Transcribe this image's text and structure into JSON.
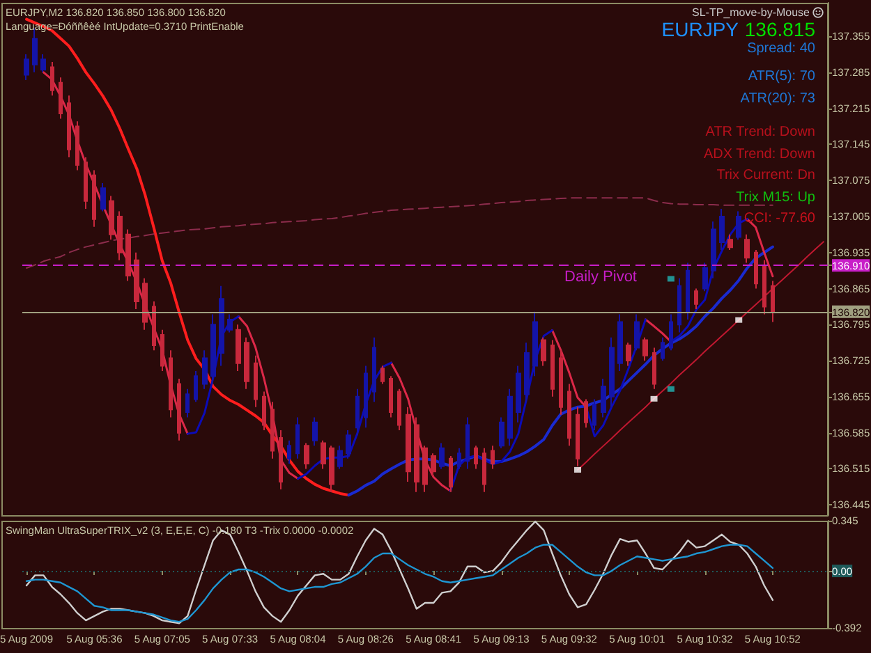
{
  "chart_data": [
    {
      "type": "candlestick",
      "title": "EURJPY,M2 136.820 136.850 136.800 136.820",
      "subtitle": "Language=Ðóññêèé IntUpdate=0.3710 PrintEnable",
      "annotations": [
        "SL-TP_move-by-Mouse",
        "EURJPY",
        "136.815",
        "Spread: 40",
        "ATR(5): 70",
        "ATR(20): 73",
        "ATR Trend: Down",
        "ADX Trend: Down",
        "Trix Current: Dn",
        "Trix M15: Up",
        "CCI: -77.60"
      ],
      "categories": [
        null,
        null,
        null,
        null,
        null,
        null,
        null,
        null,
        null,
        null,
        null,
        null,
        null,
        null,
        null,
        null,
        null,
        null,
        null,
        null,
        null,
        null,
        null,
        null,
        null,
        null,
        null,
        null,
        null,
        null,
        null,
        null,
        null,
        null,
        null,
        null,
        null,
        null,
        null,
        null,
        null,
        null,
        null,
        null,
        null,
        null,
        null,
        null,
        null,
        null,
        null,
        null,
        null,
        null,
        null,
        null,
        null,
        null,
        null,
        null,
        null,
        null,
        null,
        null,
        null,
        null,
        null,
        null,
        null,
        null,
        null,
        null,
        null,
        null,
        null,
        null,
        null,
        null,
        null,
        null,
        null,
        null,
        null,
        null,
        null,
        null,
        null,
        null,
        null,
        null,
        null,
        null,
        null,
        null,
        null
      ],
      "ohlc": [
        [
          137.28,
          137.32,
          137.27,
          137.31
        ],
        [
          137.3,
          137.37,
          137.285,
          137.35
        ],
        [
          137.29,
          137.32,
          137.285,
          137.31
        ],
        [
          137.295,
          137.305,
          137.24,
          137.25
        ],
        [
          137.265,
          137.275,
          137.195,
          137.205
        ],
        [
          137.225,
          137.24,
          137.12,
          137.135
        ],
        [
          137.18,
          137.19,
          137.095,
          137.105
        ],
        [
          137.11,
          137.12,
          137.02,
          137.035
        ],
        [
          137.085,
          137.095,
          136.985,
          137.0
        ],
        [
          137.02,
          137.07,
          137.015,
          137.06
        ],
        [
          137.035,
          137.045,
          136.96,
          136.97
        ],
        [
          137.005,
          137.015,
          136.92,
          136.935
        ],
        [
          136.97,
          136.98,
          136.88,
          136.89
        ],
        [
          136.92,
          136.935,
          136.825,
          136.84
        ],
        [
          136.875,
          136.885,
          136.785,
          136.8
        ],
        [
          136.83,
          136.84,
          136.745,
          136.755
        ],
        [
          136.775,
          136.785,
          136.705,
          136.715
        ],
        [
          136.73,
          136.745,
          136.615,
          136.63
        ],
        [
          136.68,
          136.69,
          136.57,
          136.585
        ],
        [
          136.625,
          136.67,
          136.615,
          136.66
        ],
        [
          136.65,
          136.705,
          136.645,
          136.695
        ],
        [
          136.68,
          136.745,
          136.67,
          136.73
        ],
        [
          136.695,
          136.815,
          136.68,
          136.795
        ],
        [
          136.74,
          136.87,
          136.715,
          136.845
        ],
        [
          136.785,
          136.815,
          136.78,
          136.805
        ],
        [
          136.785,
          136.795,
          136.705,
          136.72
        ],
        [
          136.76,
          136.77,
          136.67,
          136.685
        ],
        [
          136.72,
          136.735,
          136.635,
          136.65
        ],
        [
          136.655,
          136.665,
          136.59,
          136.6
        ],
        [
          136.63,
          136.645,
          136.535,
          136.55
        ],
        [
          136.575,
          136.59,
          136.475,
          136.49
        ],
        [
          136.535,
          136.57,
          136.525,
          136.56
        ],
        [
          136.545,
          136.615,
          136.535,
          136.6
        ],
        [
          136.56,
          136.565,
          136.515,
          136.525
        ],
        [
          136.57,
          136.615,
          136.56,
          136.605
        ],
        [
          136.565,
          136.57,
          136.515,
          136.525
        ],
        [
          136.555,
          136.56,
          136.47,
          136.485
        ],
        [
          136.52,
          136.56,
          136.515,
          136.55
        ],
        [
          136.545,
          136.59,
          136.535,
          136.58
        ],
        [
          136.595,
          136.67,
          136.58,
          136.655
        ],
        [
          136.615,
          136.715,
          136.595,
          136.7
        ],
        [
          136.665,
          136.77,
          136.645,
          136.75
        ],
        [
          136.71,
          136.715,
          136.68,
          136.685
        ],
        [
          136.69,
          136.695,
          136.615,
          136.625
        ],
        [
          136.665,
          136.67,
          136.59,
          136.6
        ],
        [
          136.62,
          136.635,
          136.49,
          136.51
        ],
        [
          136.6,
          136.615,
          136.47,
          136.49
        ],
        [
          136.555,
          136.56,
          136.47,
          136.485
        ],
        [
          136.54,
          136.545,
          136.5,
          136.51
        ],
        [
          136.52,
          136.565,
          136.515,
          136.555
        ],
        [
          136.535,
          136.54,
          136.47,
          136.48
        ],
        [
          136.52,
          136.555,
          136.515,
          136.545
        ],
        [
          136.53,
          136.615,
          136.515,
          136.6
        ],
        [
          136.555,
          136.56,
          136.515,
          136.525
        ],
        [
          136.545,
          136.555,
          136.47,
          136.485
        ],
        [
          136.55,
          136.56,
          136.515,
          136.525
        ],
        [
          136.56,
          136.615,
          136.555,
          136.605
        ],
        [
          136.575,
          136.67,
          136.56,
          136.655
        ],
        [
          136.625,
          136.715,
          136.605,
          136.7
        ],
        [
          136.66,
          136.76,
          136.645,
          136.74
        ],
        [
          136.715,
          136.82,
          136.695,
          136.8
        ],
        [
          136.765,
          136.77,
          136.715,
          136.725
        ],
        [
          136.755,
          136.765,
          136.655,
          136.67
        ],
        [
          136.73,
          136.745,
          136.62,
          136.635
        ],
        [
          136.665,
          136.68,
          136.56,
          136.575
        ],
        [
          136.62,
          136.635,
          136.52,
          136.535
        ],
        [
          136.645,
          136.65,
          136.595,
          136.605
        ],
        [
          136.6,
          136.65,
          136.59,
          136.64
        ],
        [
          136.625,
          136.69,
          136.615,
          136.675
        ],
        [
          136.655,
          136.77,
          136.635,
          136.75
        ],
        [
          136.72,
          136.815,
          136.705,
          136.8
        ],
        [
          136.755,
          136.76,
          136.715,
          136.725
        ],
        [
          136.75,
          136.815,
          136.745,
          136.8
        ],
        [
          136.765,
          136.77,
          136.725,
          136.735
        ],
        [
          136.74,
          136.75,
          136.67,
          136.68
        ],
        [
          136.73,
          136.77,
          136.725,
          136.76
        ],
        [
          136.75,
          136.815,
          136.745,
          136.8
        ],
        [
          136.795,
          136.885,
          136.78,
          136.87
        ],
        [
          136.82,
          136.915,
          136.805,
          136.9
        ],
        [
          136.86,
          136.865,
          136.825,
          136.835
        ],
        [
          136.865,
          136.915,
          136.86,
          136.905
        ],
        [
          136.9,
          136.995,
          136.885,
          136.98
        ],
        [
          136.955,
          137.02,
          136.94,
          137.005
        ],
        [
          136.96,
          136.97,
          136.94,
          136.945
        ],
        [
          136.965,
          137.015,
          136.96,
          137.005
        ],
        [
          136.96,
          136.97,
          136.915,
          136.925
        ],
        [
          136.935,
          136.94,
          136.865,
          136.875
        ],
        [
          136.91,
          136.92,
          136.815,
          136.83
        ],
        [
          136.87,
          136.88,
          136.8,
          136.82
        ],
        null,
        null,
        null,
        null,
        null,
        null
      ],
      "colors": [
        "#1414a8",
        "#1414a8",
        "#1414a8",
        "#c8283c",
        "#c8283c",
        "#c8283c",
        "#c8283c",
        "#c8283c",
        "#c8283c",
        "#1414a8",
        "#c8283c",
        "#c8283c",
        "#c8283c",
        "#c8283c",
        "#c8283c",
        "#c8283c",
        "#c8283c",
        "#c8283c",
        "#c8283c",
        "#1414a8",
        "#1414a8",
        "#1414a8",
        "#1414a8",
        "#1414a8",
        "#1414a8",
        "#c8283c",
        "#c8283c",
        "#c8283c",
        "#c8283c",
        "#c8283c",
        "#c8283c",
        "#1414a8",
        "#1414a8",
        "#c8283c",
        "#1414a8",
        "#c8283c",
        "#c8283c",
        "#1414a8",
        "#1414a8",
        "#1414a8",
        "#1414a8",
        "#1414a8",
        "#c8283c",
        "#c8283c",
        "#c8283c",
        "#c8283c",
        "#c8283c",
        "#c8283c",
        "#c8283c",
        "#1414a8",
        "#c8283c",
        "#1414a8",
        "#1414a8",
        "#c8283c",
        "#c8283c",
        "#c8283c",
        "#1414a8",
        "#1414a8",
        "#1414a8",
        "#1414a8",
        "#1414a8",
        "#c8283c",
        "#c8283c",
        "#c8283c",
        "#c8283c",
        "#c8283c",
        "#c8283c",
        "#1414a8",
        "#1414a8",
        "#1414a8",
        "#1414a8",
        "#c8283c",
        "#1414a8",
        "#c8283c",
        "#c8283c",
        "#1414a8",
        "#1414a8",
        "#1414a8",
        "#1414a8",
        "#c8283c",
        "#1414a8",
        "#1414a8",
        "#1414a8",
        "#c8283c",
        "#1414a8",
        "#c8283c",
        "#c8283c",
        "#c8283c",
        "#c8283c",
        null,
        null,
        null,
        null,
        null,
        null
      ],
      "ylim": [
        136.425,
        137.42
      ],
      "yticks": [
        137.355,
        137.285,
        137.215,
        137.145,
        137.075,
        137.005,
        136.935,
        136.865,
        136.795,
        136.725,
        136.655,
        136.585,
        136.515,
        136.445,
        {
          "value": 136.91,
          "label": "136.910"
        },
        {
          "value": 136.82,
          "label": "136.820"
        }
      ],
      "series": [
        {
          "type": "line",
          "color": "#ff1e1e",
          "values": [
            137.388,
            137.381,
            137.374,
            137.366,
            137.351,
            137.336,
            137.312,
            137.285,
            137.263,
            137.239,
            137.211,
            137.176,
            137.136,
            137.098,
            137.046,
            136.984,
            136.919,
            136.876,
            136.819,
            136.765,
            136.729,
            136.708,
            136.675,
            136.659,
            136.648,
            136.64,
            136.629,
            136.618,
            136.605,
            136.58,
            136.559,
            136.532,
            136.51,
            136.496,
            136.485,
            136.477,
            136.472,
            136.467,
            136.464,
            null,
            null,
            null,
            null,
            null,
            null,
            null,
            null,
            null,
            null,
            null,
            null,
            null,
            null,
            null,
            null,
            null,
            null,
            null,
            null,
            null,
            null,
            null,
            null,
            null,
            null,
            null,
            null,
            null,
            null,
            null,
            null,
            null,
            null,
            null,
            null,
            null,
            null,
            null,
            null,
            null,
            null,
            null,
            null,
            null,
            null,
            null,
            null,
            null,
            null,
            null,
            null,
            null,
            null,
            null,
            null
          ]
        },
        {
          "type": "line",
          "color": "#1a2ad0",
          "values": [
            null,
            null,
            null,
            null,
            null,
            null,
            null,
            null,
            null,
            null,
            null,
            null,
            null,
            null,
            null,
            null,
            null,
            null,
            null,
            null,
            null,
            null,
            null,
            null,
            null,
            null,
            null,
            null,
            null,
            null,
            null,
            null,
            null,
            null,
            null,
            null,
            null,
            null,
            136.464,
            136.472,
            136.483,
            136.491,
            136.505,
            136.515,
            136.524,
            136.532,
            136.534,
            136.534,
            136.532,
            136.526,
            136.521,
            136.529,
            136.534,
            136.54,
            136.534,
            136.529,
            136.529,
            136.534,
            136.54,
            136.548,
            136.559,
            136.572,
            136.599,
            136.621,
            136.629,
            136.635,
            136.637,
            136.643,
            136.648,
            136.659,
            136.67,
            136.686,
            136.702,
            136.718,
            136.735,
            136.748,
            136.759,
            136.767,
            136.778,
            136.792,
            136.811,
            136.827,
            136.846,
            136.862,
            136.881,
            136.905,
            136.924,
            136.935,
            136.946,
            null,
            null,
            null,
            null,
            null,
            null
          ]
        },
        {
          "type": "line",
          "color": "#dc2848",
          "values": [
            null,
            null,
            137.285,
            137.271,
            137.239,
            137.203,
            137.152,
            137.106,
            137.068,
            137.027,
            136.989,
            136.951,
            136.916,
            136.878,
            136.832,
            136.789,
            136.746,
            136.678,
            136.621,
            136.583,
            null,
            null,
            null,
            null,
            null,
            136.811,
            136.792,
            136.751,
            136.691,
            136.621,
            136.532,
            136.507,
            136.496,
            null,
            null,
            null,
            null,
            null,
            null,
            null,
            null,
            null,
            null,
            136.721,
            136.691,
            136.651,
            136.589,
            136.532,
            136.499,
            136.483,
            136.472,
            null,
            null,
            null,
            null,
            null,
            null,
            null,
            null,
            null,
            null,
            null,
            136.784,
            136.746,
            136.702,
            136.653,
            136.635,
            null,
            null,
            null,
            null,
            null,
            null,
            136.805,
            136.792,
            136.778,
            136.762,
            null,
            null,
            null,
            null,
            null,
            null,
            null,
            null,
            137.0,
            136.984,
            136.935,
            136.889,
            null,
            null,
            null,
            null,
            null,
            null
          ]
        },
        {
          "type": "line",
          "color": "#0c0cb8",
          "values": [
            null,
            null,
            null,
            null,
            null,
            null,
            null,
            null,
            null,
            null,
            null,
            null,
            null,
            null,
            null,
            null,
            null,
            null,
            null,
            136.583,
            136.586,
            136.624,
            136.691,
            136.773,
            136.8,
            136.811,
            null,
            null,
            null,
            null,
            null,
            null,
            136.496,
            136.505,
            136.521,
            136.534,
            136.537,
            136.537,
            136.54,
            136.583,
            136.64,
            136.686,
            136.713,
            136.721,
            null,
            null,
            null,
            null,
            null,
            null,
            136.472,
            136.521,
            136.537,
            136.54,
            136.532,
            136.524,
            136.529,
            136.548,
            136.583,
            136.653,
            136.727,
            136.773,
            136.784,
            null,
            null,
            null,
            136.635,
            136.578,
            136.599,
            136.635,
            136.667,
            136.71,
            136.756,
            136.805,
            null,
            null,
            136.762,
            136.773,
            136.792,
            136.824,
            136.843,
            136.903,
            136.938,
            136.97,
            136.992,
            137.0,
            null,
            null,
            null,
            null,
            null,
            null,
            null,
            null,
            null
          ]
        },
        {
          "type": "line",
          "color": "#8c2c4c",
          "line_style": "dashed",
          "values": [
            136.905,
            136.911,
            136.918,
            136.923,
            136.927,
            136.935,
            136.941,
            136.946,
            136.95,
            136.954,
            136.958,
            136.961,
            136.963,
            136.966,
            136.968,
            136.971,
            136.973,
            136.975,
            136.977,
            136.979,
            136.98,
            136.981,
            136.983,
            136.985,
            136.986,
            136.987,
            136.989,
            136.99,
            136.991,
            136.993,
            136.994,
            136.995,
            136.996,
            136.997,
            136.999,
            137.0,
            137.001,
            137.003,
            137.006,
            137.008,
            137.011,
            137.013,
            137.015,
            137.017,
            137.018,
            137.019,
            137.02,
            137.021,
            137.022,
            137.023,
            137.024,
            137.025,
            137.026,
            137.027,
            137.029,
            137.03,
            137.032,
            137.033,
            137.034,
            137.036,
            137.037,
            137.038,
            137.039,
            137.04,
            137.041,
            137.041,
            137.041,
            137.041,
            137.041,
            137.041,
            137.041,
            137.041,
            137.041,
            137.041,
            137.036,
            137.032,
            137.03,
            137.029,
            137.029,
            137.028,
            137.028,
            137.028,
            137.027,
            137.027,
            137.027,
            137.027,
            137.027,
            137.027,
            137.027,
            null,
            null,
            null,
            null,
            null,
            null
          ]
        },
        {
          "type": "line",
          "color": "#c01830",
          "values": [
            null,
            null,
            null,
            null,
            null,
            null,
            null,
            null,
            null,
            null,
            null,
            null,
            null,
            null,
            null,
            null,
            null,
            null,
            null,
            null,
            null,
            null,
            null,
            null,
            null,
            null,
            null,
            null,
            null,
            null,
            null,
            null,
            null,
            null,
            null,
            null,
            null,
            null,
            null,
            null,
            null,
            null,
            null,
            null,
            null,
            null,
            null,
            null,
            null,
            null,
            null,
            null,
            null,
            null,
            null,
            null,
            null,
            null,
            null,
            null,
            null,
            null,
            null,
            null,
            null,
            136.513,
            136.528,
            136.544,
            136.559,
            136.574,
            136.59,
            136.605,
            136.62,
            136.635,
            136.651,
            136.666,
            136.681,
            136.697,
            136.712,
            136.727,
            136.743,
            136.758,
            136.773,
            136.788,
            136.804,
            136.819,
            136.834,
            136.849,
            136.865,
            136.88,
            136.895,
            136.91,
            136.926,
            136.941,
            136.956
          ]
        },
        {
          "type": "scatter",
          "color": "#ffffff",
          "marker": "square",
          "values": [
            null,
            null,
            null,
            null,
            null,
            null,
            null,
            null,
            null,
            null,
            null,
            null,
            null,
            null,
            null,
            null,
            null,
            null,
            null,
            null,
            null,
            null,
            null,
            null,
            null,
            null,
            null,
            null,
            null,
            null,
            null,
            null,
            null,
            null,
            null,
            null,
            null,
            null,
            null,
            null,
            null,
            null,
            null,
            null,
            null,
            null,
            null,
            null,
            null,
            null,
            null,
            null,
            null,
            null,
            null,
            null,
            null,
            null,
            null,
            null,
            null,
            null,
            null,
            null,
            null,
            136.513,
            null,
            null,
            null,
            null,
            null,
            null,
            null,
            null,
            136.651,
            null,
            null,
            null,
            null,
            null,
            null,
            null,
            null,
            null,
            136.804,
            null,
            null,
            null,
            null,
            null,
            null,
            null,
            null,
            null,
            null
          ]
        },
        {
          "type": "scatter",
          "color": "#20b4b4",
          "marker": "square",
          "values": [
            null,
            null,
            null,
            null,
            null,
            null,
            null,
            null,
            null,
            null,
            null,
            null,
            null,
            null,
            null,
            null,
            null,
            null,
            null,
            null,
            null,
            null,
            null,
            null,
            null,
            null,
            null,
            null,
            null,
            null,
            null,
            null,
            null,
            null,
            null,
            null,
            null,
            null,
            null,
            null,
            null,
            null,
            null,
            null,
            null,
            null,
            null,
            null,
            null,
            null,
            null,
            null,
            null,
            null,
            null,
            null,
            null,
            null,
            null,
            null,
            null,
            null,
            null,
            null,
            null,
            null,
            null,
            null,
            null,
            null,
            null,
            null,
            null,
            null,
            null,
            null,
            136.884,
            null,
            null,
            null,
            null,
            null,
            null,
            null,
            null,
            null,
            null,
            null,
            null,
            null,
            null,
            null,
            null,
            null,
            null
          ]
        },
        {
          "type": "scatter",
          "color": "#20b4b4",
          "marker": "square",
          "values": [
            null,
            null,
            null,
            null,
            null,
            null,
            null,
            null,
            null,
            null,
            null,
            null,
            null,
            null,
            null,
            null,
            null,
            null,
            null,
            null,
            null,
            null,
            null,
            null,
            null,
            null,
            null,
            null,
            null,
            null,
            null,
            null,
            null,
            null,
            null,
            null,
            null,
            null,
            null,
            null,
            null,
            null,
            null,
            null,
            null,
            null,
            null,
            null,
            null,
            null,
            null,
            null,
            null,
            null,
            null,
            null,
            null,
            null,
            null,
            null,
            null,
            null,
            null,
            null,
            null,
            null,
            null,
            null,
            null,
            null,
            null,
            null,
            null,
            null,
            null,
            null,
            136.67,
            null,
            null,
            null,
            null,
            null,
            null,
            null,
            null,
            null,
            null,
            null,
            null,
            null,
            null,
            null,
            null,
            null,
            null
          ]
        }
      ],
      "ref_lines": [
        {
          "axis": "y",
          "value": 136.91,
          "label": "Daily Pivot",
          "color": "#c81ec8",
          "line_style": "dashed"
        },
        {
          "axis": "y",
          "value": 136.82,
          "color": "#a0a080",
          "line_style": "solid"
        }
      ]
    },
    {
      "type": "line",
      "title": "SwingMan UltraSuperTRIX_v2 (3, E,E,E, C) -0.180 T3 -Trix 0.0000 -0.0002",
      "categories": [
        "5 Aug 2009",
        null,
        null,
        null,
        null,
        null,
        null,
        null,
        "5 Aug 05:36",
        null,
        null,
        null,
        null,
        null,
        null,
        null,
        "5 Aug 07:05",
        null,
        null,
        null,
        null,
        null,
        null,
        null,
        "5 Aug 07:33",
        null,
        null,
        null,
        null,
        null,
        null,
        null,
        "5 Aug 08:04",
        null,
        null,
        null,
        null,
        null,
        null,
        null,
        "5 Aug 08:26",
        null,
        null,
        null,
        null,
        null,
        null,
        null,
        "5 Aug 08:41",
        null,
        null,
        null,
        null,
        null,
        null,
        null,
        "5 Aug 09:13",
        null,
        null,
        null,
        null,
        null,
        null,
        null,
        "5 Aug 09:32",
        null,
        null,
        null,
        null,
        null,
        null,
        null,
        "5 Aug 10:01",
        null,
        null,
        null,
        null,
        null,
        null,
        null,
        "5 Aug 10:32",
        null,
        null,
        null,
        null,
        null,
        null,
        null,
        "5 Aug 10:52",
        null,
        null,
        null,
        null,
        null,
        null
      ],
      "ylim": [
        -0.392,
        0.345
      ],
      "yticks": [
        0.345,
        {
          "value": 0,
          "label": "0.00"
        },
        -0.392
      ],
      "series": [
        {
          "color": "#cfcfcf",
          "values": [
            -0.1,
            -0.03,
            -0.03,
            -0.11,
            -0.16,
            -0.22,
            -0.29,
            -0.34,
            -0.31,
            -0.28,
            -0.26,
            -0.26,
            -0.27,
            -0.28,
            -0.29,
            -0.31,
            -0.34,
            -0.35,
            -0.36,
            -0.31,
            -0.13,
            0.04,
            0.21,
            0.28,
            0.25,
            0.13,
            0,
            -0.14,
            -0.25,
            -0.31,
            -0.35,
            -0.27,
            -0.17,
            -0.1,
            -0.03,
            -0.02,
            -0.06,
            -0.06,
            -0.02,
            0.1,
            0.21,
            0.29,
            0.25,
            0.14,
            0.01,
            -0.12,
            -0.26,
            -0.22,
            -0.22,
            -0.15,
            -0.14,
            -0.08,
            0.03,
            0.03,
            -0.01,
            0,
            0.06,
            0.14,
            0.21,
            0.28,
            0.34,
            0.28,
            0.12,
            -0.03,
            -0.16,
            -0.25,
            -0.23,
            -0.13,
            -0.02,
            0.11,
            0.22,
            0.2,
            0.21,
            0.12,
            0.02,
            0.01,
            0.07,
            0.13,
            0.21,
            0.16,
            0.17,
            0.21,
            0.25,
            0.2,
            0.18,
            0.12,
            0.03,
            -0.1,
            -0.2,
            null,
            null,
            null,
            null,
            null,
            null
          ]
        },
        {
          "color": "#1e96d2",
          "values": [
            -0.07,
            -0.06,
            -0.06,
            -0.07,
            -0.08,
            -0.11,
            -0.14,
            -0.19,
            -0.24,
            -0.25,
            -0.27,
            -0.27,
            -0.27,
            -0.28,
            -0.29,
            -0.3,
            -0.32,
            -0.34,
            -0.35,
            -0.33,
            -0.27,
            -0.2,
            -0.12,
            -0.06,
            -0.01,
            0.01,
            0.01,
            -0.01,
            -0.04,
            -0.08,
            -0.12,
            -0.14,
            -0.13,
            -0.12,
            -0.11,
            -0.11,
            -0.09,
            -0.08,
            -0.05,
            -0.02,
            0.03,
            0.09,
            0.12,
            0.12,
            0.08,
            0.04,
            0.01,
            -0.02,
            -0.04,
            -0.07,
            -0.08,
            -0.07,
            -0.06,
            -0.05,
            -0.04,
            -0.03,
            0.01,
            0.05,
            0.09,
            0.12,
            0.16,
            0.18,
            0.18,
            0.13,
            0.08,
            0.03,
            -0.01,
            -0.03,
            -0.03,
            0,
            0.04,
            0.07,
            0.1,
            0.09,
            0.08,
            0.07,
            0.08,
            0.09,
            0.1,
            0.12,
            0.13,
            0.15,
            0.17,
            0.18,
            0.18,
            0.17,
            0.12,
            0.07,
            0.02,
            null,
            null,
            null,
            null,
            null,
            null
          ]
        }
      ],
      "ref_lines": [
        {
          "axis": "y",
          "value": 0,
          "color": "#1e5a5a",
          "line_style": "dotted"
        }
      ]
    }
  ]
}
